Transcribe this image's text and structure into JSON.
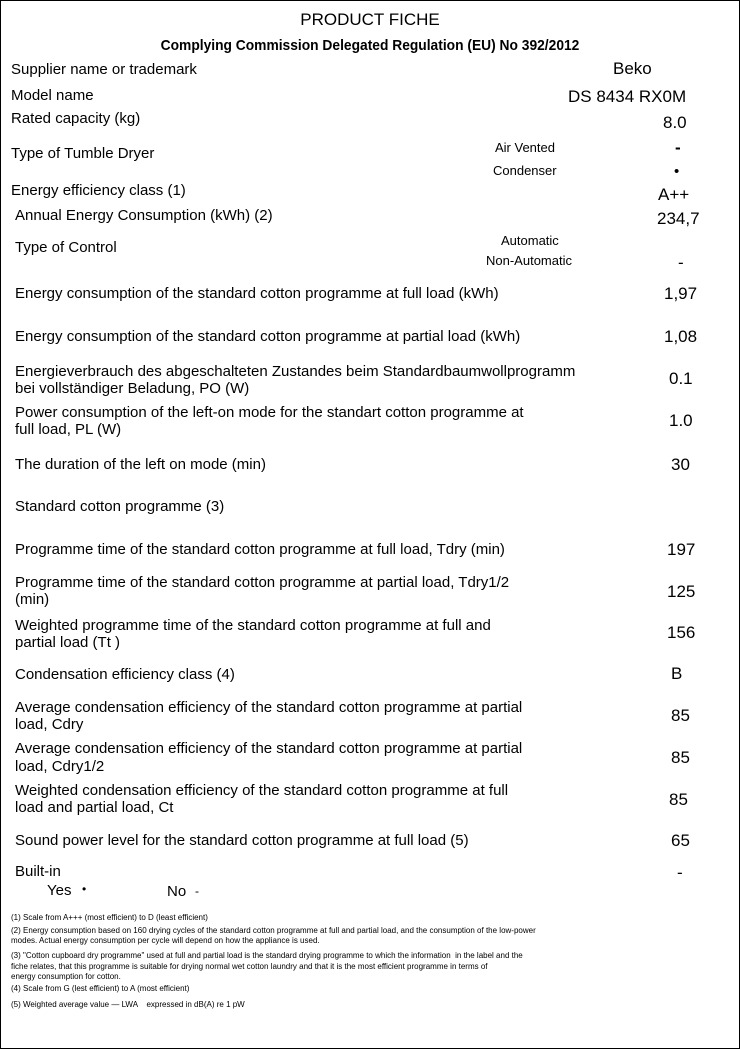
{
  "header": {
    "title": "PRODUCT FICHE",
    "subtitle": "Complying Commission Delegated Regulation (EU) No 392/2012"
  },
  "rows": [
    {
      "label": "Supplier name or trademark",
      "value": "Beko"
    },
    {
      "label": "Model name",
      "value": "DS 8434 RX0M"
    },
    {
      "label": "Rated capacity (kg)",
      "value": "8.0"
    },
    {
      "label": "Type of Tumble Dryer",
      "options": [
        {
          "label": "Air Vented",
          "value": "-"
        },
        {
          "label": "Condenser",
          "value": "•"
        }
      ]
    },
    {
      "label": "Energy efficiency class (1)",
      "value": "A++"
    },
    {
      "label": "Annual Energy Consumption (kWh) (2)",
      "value": "234,7"
    },
    {
      "label": "Type of Control",
      "options": [
        {
          "label": "Automatic"
        },
        {
          "label": "Non-Automatic",
          "value": "-"
        }
      ]
    },
    {
      "label": "Energy consumption of the standard cotton programme at full load (kWh)",
      "value": "1,97"
    },
    {
      "label": "Energy consumption of the standard cotton programme at partial load (kWh)",
      "value": "1,08"
    },
    {
      "label": [
        "Energieverbrauch des abgeschalteten Zustandes beim Standardbaumwollprogramm",
        "bei vollständiger Beladung, PO (W)"
      ],
      "value": "0.1"
    },
    {
      "label": [
        "Power consumption of the left-on mode for the standart cotton programme at",
        "full load, PL (W)"
      ],
      "value": "1.0"
    },
    {
      "label": "The duration of the left on mode (min)",
      "value": "30"
    },
    {
      "label": "Standard cotton programme (3)"
    },
    {
      "label": "Programme time of the standard cotton programme at full load, Tdry (min)",
      "value": "197"
    },
    {
      "label": [
        "Programme time of the standard cotton programme at partial load, Tdry1/2",
        "(min)"
      ],
      "value": "125"
    },
    {
      "label": [
        "Weighted programme time of the standard cotton programme at full and",
        "partial load (Tt )"
      ],
      "value": "156"
    },
    {
      "label": "Condensation efficiency class (4)",
      "value": "B"
    },
    {
      "label": [
        "Average condensation efficiency of the standard cotton programme at partial",
        "load, Cdry"
      ],
      "value": "85"
    },
    {
      "label": [
        "Average condensation efficiency of the standard cotton programme at partial",
        "load, Cdry1/2"
      ],
      "value": "85"
    },
    {
      "label": [
        "Weighted condensation efficiency of the standard cotton programme at full",
        "load and partial load, Ct"
      ],
      "value": "85"
    },
    {
      "label": "Sound power level for the standard cotton programme at full load (5)",
      "value": "65"
    },
    {
      "label": "Built-in",
      "value": "-",
      "options": [
        {
          "label": "Yes",
          "value": "•"
        },
        {
          "label": "No",
          "value": "-"
        }
      ]
    }
  ],
  "footnotes": [
    [
      "(1) Scale from A+++ (most efficient) to D (least efficient)"
    ],
    [
      "(2) Energy consumption based on 160 drying cycles of the standard cotton programme at full and partial load, and the consumption of the low-power",
      "modes. Actual energy consumption per cycle will depend on how the appliance is used."
    ],
    [
      "(3) \"Cotton cupboard dry programme\" used at full and partial load is the standard drying programme to which the information  in the label and the",
      "fiche relates, that this programme is suitable for drying normal wet cotton laundry and that it is the most efficient programme in terms of",
      "energy consumption for cotton."
    ],
    [
      "(4) Scale from G (lest efficient) to A (most efficient)"
    ],
    [
      "(5) Weighted average value — LWA    expressed in dB(A) re 1 pW"
    ]
  ]
}
